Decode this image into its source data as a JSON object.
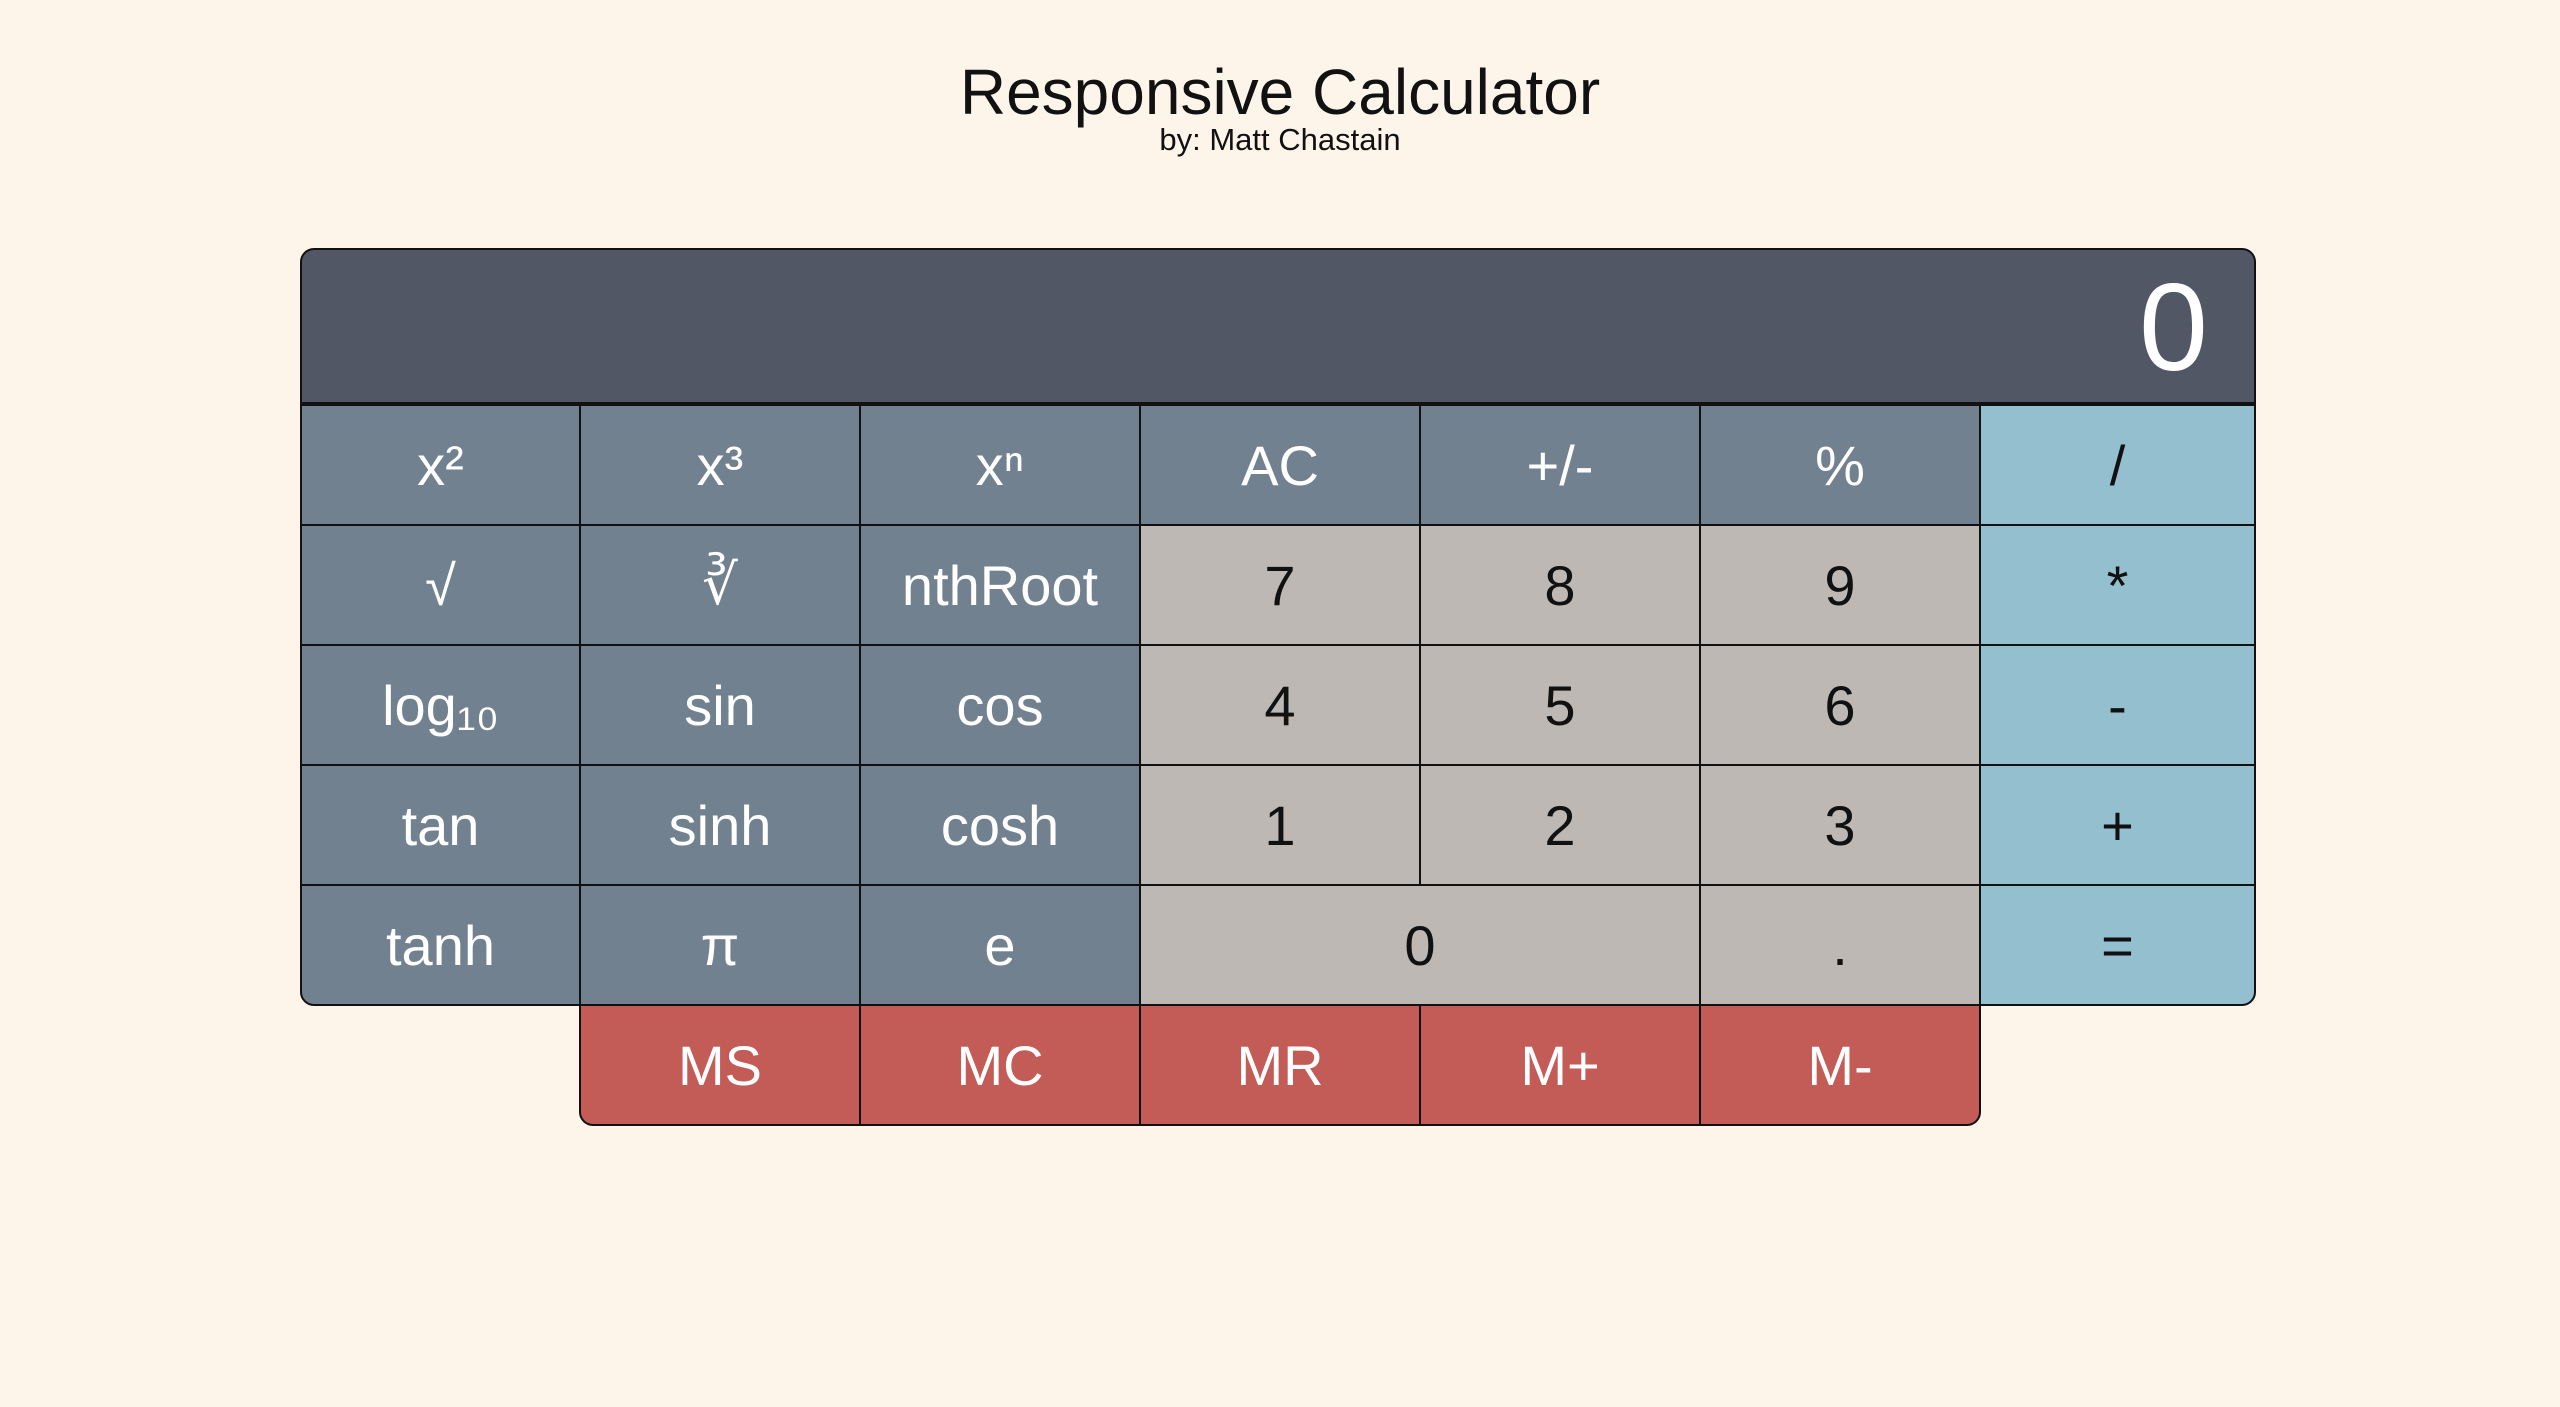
{
  "header": {
    "title": "Responsive Calculator",
    "subtitle": "by: Matt Chastain"
  },
  "display": {
    "value": "0"
  },
  "keys": {
    "x_squared": "x²",
    "x_cubed": "x³",
    "x_n": "xⁿ",
    "ac": "AC",
    "plus_minus": "+/-",
    "percent": "%",
    "divide": "/",
    "sqrt": "√",
    "cbrt": "∛",
    "nth_root": "nthRoot",
    "seven": "7",
    "eight": "8",
    "nine": "9",
    "multiply": "*",
    "log10": "log₁₀",
    "sin": "sin",
    "cos": "cos",
    "four": "4",
    "five": "5",
    "six": "6",
    "minus": "-",
    "tan": "tan",
    "sinh": "sinh",
    "cosh": "cosh",
    "one": "1",
    "two": "2",
    "three": "3",
    "plus": "+",
    "tanh": "tanh",
    "pi": "π",
    "e": "e",
    "zero": "0",
    "decimal": ".",
    "equals": "="
  },
  "memory": {
    "ms": "MS",
    "mc": "MC",
    "mr": "MR",
    "m_plus": "M+",
    "m_minus": "M-"
  },
  "colors": {
    "background": "#fdf5ea",
    "display": "#525766",
    "function_key": "#728190",
    "number_key": "#bdb8b4",
    "operator_key": "#93bfce",
    "memory_key": "#c35b57"
  }
}
